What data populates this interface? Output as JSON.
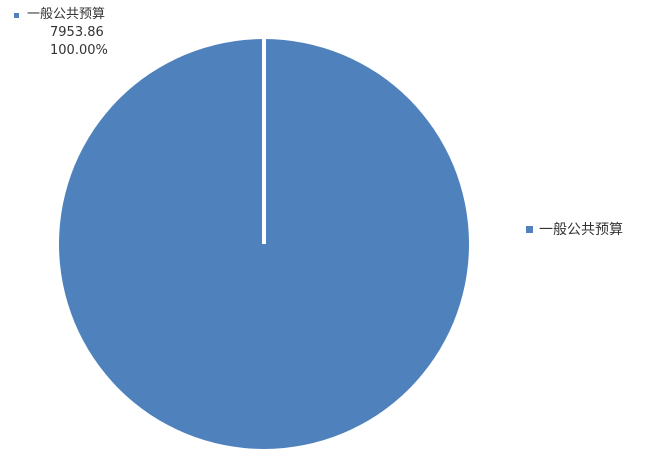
{
  "chart_data": {
    "type": "pie",
    "categories": [
      "一般公共预算"
    ],
    "values": [
      7953.86
    ],
    "data_labels": [
      {
        "name": "一般公共预算",
        "value": "7953.86",
        "percent": "100.00%"
      }
    ],
    "legend": {
      "position": "right",
      "entries": [
        "一般公共预算"
      ]
    },
    "colors": {
      "slice": "#4f81bd",
      "separator": "#ffffff"
    }
  }
}
